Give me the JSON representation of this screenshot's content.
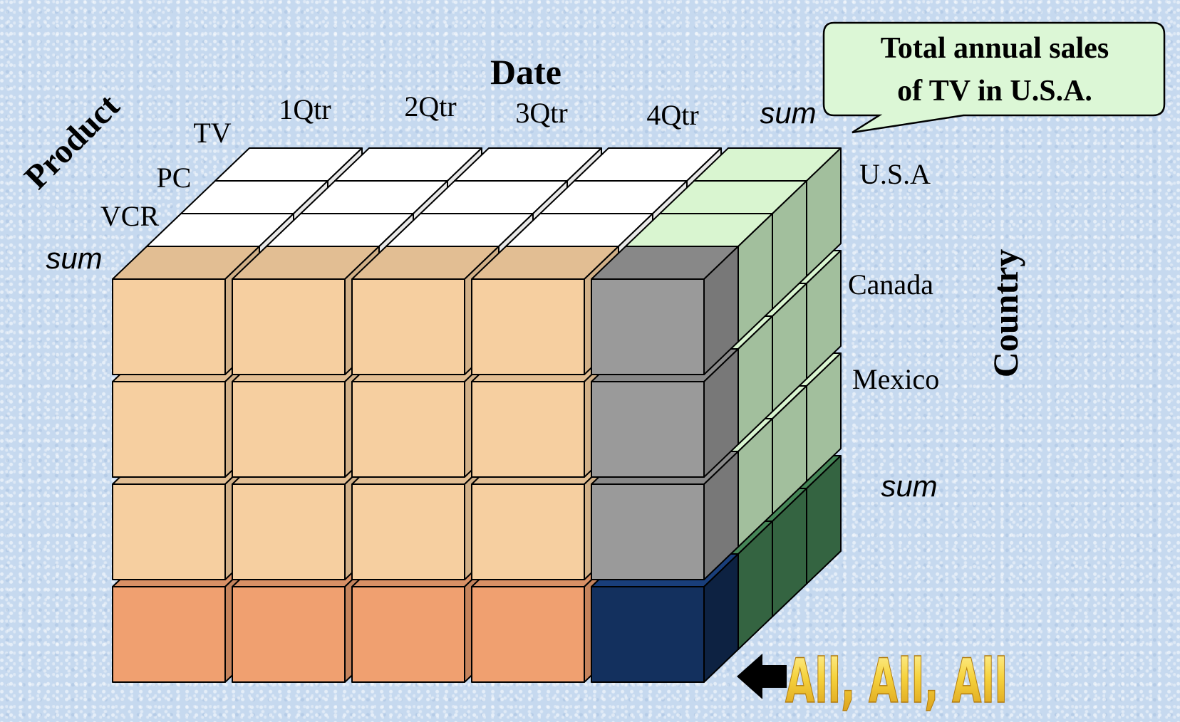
{
  "axes": {
    "date": {
      "title": "Date",
      "labels": [
        "1Qtr",
        "2Qtr",
        "3Qtr",
        "4Qtr",
        "sum"
      ]
    },
    "product": {
      "title": "Product",
      "labels": [
        "TV",
        "PC",
        "VCR",
        "sum"
      ]
    },
    "country": {
      "title": "Country",
      "labels": [
        "U.S.A",
        "Canada",
        "Mexico",
        "sum"
      ]
    }
  },
  "callout": {
    "line1": "Total annual sales",
    "line2": "of  TV in U.S.A."
  },
  "all_label": "All, All, All",
  "colors": {
    "front_peach": "#f6cfa0",
    "front_salmon": "#f0a070",
    "gray": "#9a9a9a",
    "navy": "#13305e",
    "light_green": "#b4d4ae",
    "dark_green": "#3f7a4f",
    "top_white": "#ffffff",
    "callout_fill": "#dcf7d6",
    "all_fill": "#f2c636"
  },
  "icons": {
    "arrow": "left-arrow-icon"
  }
}
